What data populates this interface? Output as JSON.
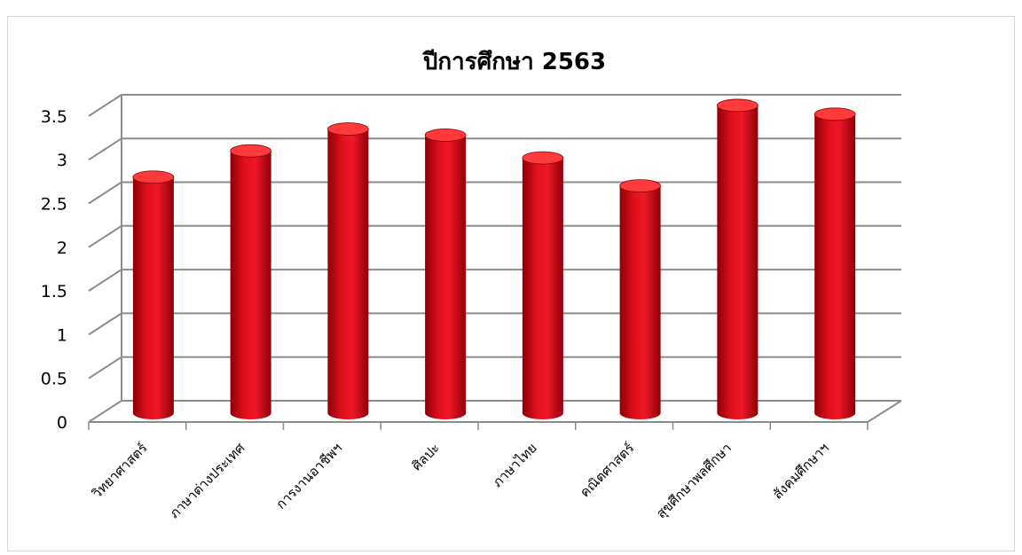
{
  "chart_data": {
    "type": "bar",
    "title": "ปีการศึกษา 2563",
    "categories": [
      "วิทยาศาสตร์",
      "ภาษาต่างประเทศ",
      "การงานอาชีพฯ",
      "ศิลปะ",
      "ภาษาไทย",
      "คณิตศาสตร์",
      "สุขศึกษาพลศึกษา",
      "สังคมศึกษาฯ"
    ],
    "values": [
      2.7,
      3.0,
      3.25,
      3.18,
      2.92,
      2.6,
      3.52,
      3.42
    ],
    "ylim": [
      0,
      3.5
    ],
    "yticks": [
      "0",
      "0.5",
      "1",
      "1.5",
      "2",
      "2.5",
      "3",
      "3.5"
    ],
    "grid": true,
    "legend": "none",
    "colors": {
      "bar": "#e0101c",
      "bar_dark": "#8e0008",
      "bar_top": "#ff3a3a",
      "grid": "#8c8c8c"
    }
  }
}
